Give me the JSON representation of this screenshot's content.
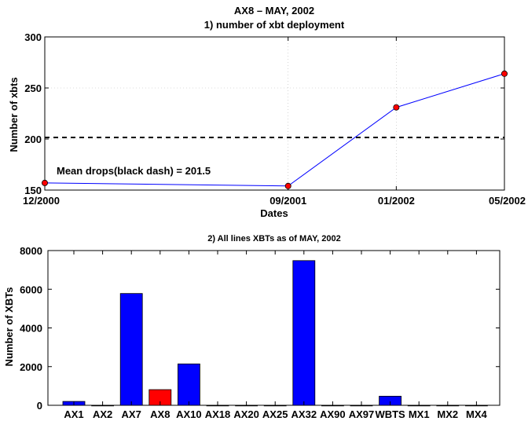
{
  "chart_data": [
    {
      "type": "line",
      "title": "AX8 – MAY, 2002",
      "subtitle": "1) number of xbt deployment",
      "xlabel": "Dates",
      "ylabel": "Number of xbts",
      "x": [
        "12/2000",
        "09/2001",
        "01/2002",
        "05/2002"
      ],
      "x_ticks": [
        "12/2000",
        "09/2001",
        "01/2002",
        "05/2002"
      ],
      "values": [
        157,
        154,
        231,
        264
      ],
      "ylim": [
        150,
        300
      ],
      "y_ticks": [
        150,
        200,
        250,
        300
      ],
      "grid": true,
      "line_color": "#0000ff",
      "marker_color": "#ff0000",
      "mean": 201.5,
      "mean_style": "black dash",
      "annotation": "Mean drops(black dash) = 201.5"
    },
    {
      "type": "bar",
      "title": "2) All lines XBTs as of MAY, 2002",
      "xlabel": "",
      "ylabel": "Number of XBTs",
      "categories": [
        "AX1",
        "AX2",
        "AX7",
        "AX8",
        "AX10",
        "AX18",
        "AX20",
        "AX25",
        "AX32",
        "AX90",
        "AX97",
        "WBTS",
        "MX1",
        "MX2",
        "MX4"
      ],
      "values": [
        200,
        0,
        5780,
        810,
        2140,
        0,
        0,
        0,
        7480,
        0,
        0,
        470,
        0,
        0,
        0
      ],
      "highlight": "AX8",
      "bar_color": "#0000ff",
      "highlight_color": "#ff0000",
      "ylim": [
        0,
        8000
      ],
      "y_ticks": [
        0,
        2000,
        4000,
        6000,
        8000
      ]
    }
  ]
}
